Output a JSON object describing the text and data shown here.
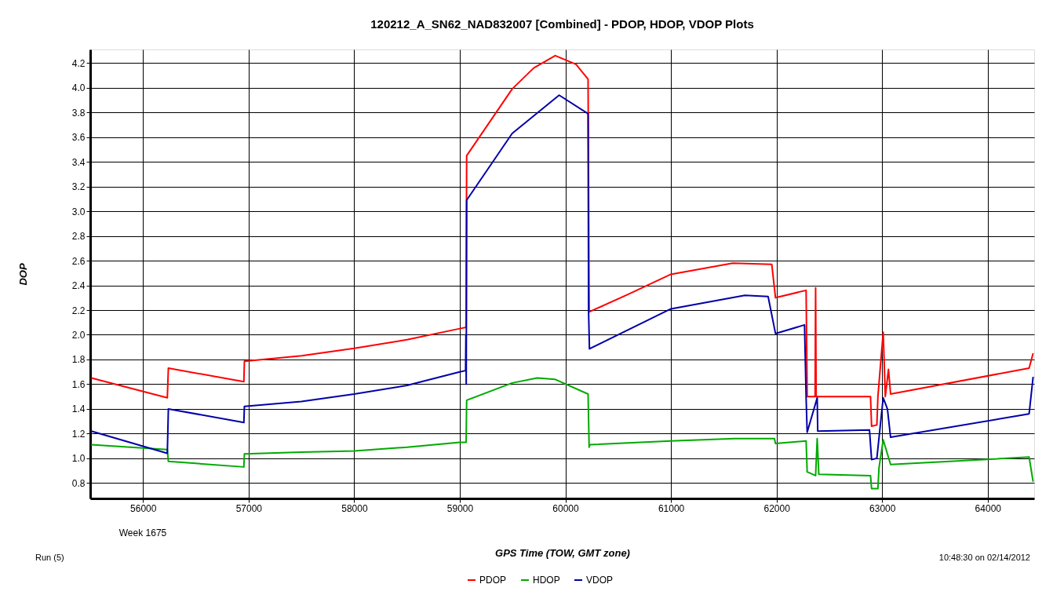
{
  "chart_data": {
    "type": "line",
    "title": "120212_A_SN62_NAD832007 [Combined] - PDOP, HDOP, VDOP Plots",
    "xlabel": "GPS Time (TOW, GMT zone)",
    "ylabel": "DOP",
    "annotations": [
      "Week 1675",
      "Run (5)",
      "10:48:30 on 02/14/2012"
    ],
    "xlim": [
      55500,
      64440
    ],
    "xticks": [
      56000,
      57000,
      58000,
      59000,
      60000,
      61000,
      62000,
      63000,
      64000
    ],
    "ylim": [
      0.675,
      4.31
    ],
    "yticks": [
      {
        "value": 0.8,
        "label": "0.8"
      },
      {
        "value": 1.0,
        "label": "1.0"
      },
      {
        "value": 1.2,
        "label": "1.2"
      },
      {
        "value": 1.4,
        "label": "1.4"
      },
      {
        "value": 1.6,
        "label": "1.6"
      },
      {
        "value": 1.8,
        "label": "1.8"
      },
      {
        "value": 2.0,
        "label": "2.0"
      },
      {
        "value": 2.2,
        "label": "2.2"
      },
      {
        "value": 2.4,
        "label": "2.4"
      },
      {
        "value": 2.6,
        "label": "2.6"
      },
      {
        "value": 2.8,
        "label": "2.8"
      },
      {
        "value": 3.0,
        "label": "3.0"
      },
      {
        "value": 3.2,
        "label": "3.2"
      },
      {
        "value": 3.4,
        "label": "3.4"
      },
      {
        "value": 3.6,
        "label": "3.6"
      },
      {
        "value": 3.8,
        "label": "3.8"
      },
      {
        "value": 4.0,
        "label": "4.0"
      },
      {
        "value": 4.2,
        "label": "4.2"
      }
    ],
    "grid": true,
    "legend": "bottom",
    "marker": "none",
    "line_style": "solid",
    "series": [
      {
        "name": "PDOP",
        "color": "#ff0000",
        "x": [
          55510,
          56230,
          56240,
          56955,
          56960,
          57500,
          58000,
          58500,
          59000,
          59060,
          59065,
          59496,
          59700,
          59904,
          60100,
          60215,
          60225,
          60600,
          61000,
          61585,
          61955,
          61990,
          62280,
          62290,
          62365,
          62370,
          62375,
          62890,
          62900,
          62950,
          62960,
          63010,
          63030,
          63060,
          63080,
          64392,
          64430
        ],
        "values": [
          1.65,
          1.49,
          1.73,
          1.62,
          1.785,
          1.83,
          1.89,
          1.96,
          2.05,
          2.06,
          3.45,
          3.99,
          4.16,
          4.26,
          4.19,
          4.07,
          2.185,
          2.33,
          2.49,
          2.58,
          2.57,
          2.3,
          2.36,
          1.5,
          1.5,
          2.38,
          1.5,
          1.5,
          1.26,
          1.27,
          1.5,
          2.02,
          1.5,
          1.72,
          1.52,
          1.73,
          1.85
        ]
      },
      {
        "name": "HDOP",
        "color": "#00aa00",
        "x": [
          55510,
          56230,
          56240,
          56955,
          56960,
          57500,
          58000,
          58500,
          59000,
          59060,
          59065,
          59496,
          59733,
          59900,
          60215,
          60225,
          60232,
          61000,
          61600,
          61980,
          61990,
          62280,
          62290,
          62370,
          62385,
          62400,
          62890,
          62900,
          62960,
          62970,
          63010,
          63080,
          64392,
          64430
        ],
        "values": [
          1.11,
          1.07,
          0.975,
          0.93,
          1.035,
          1.05,
          1.06,
          1.09,
          1.13,
          1.13,
          1.47,
          1.61,
          1.65,
          1.64,
          1.52,
          1.09,
          1.11,
          1.14,
          1.16,
          1.16,
          1.12,
          1.14,
          0.89,
          0.86,
          1.16,
          0.87,
          0.86,
          0.755,
          0.755,
          0.92,
          1.15,
          0.95,
          1.01,
          0.81
        ]
      },
      {
        "name": "VDOP",
        "color": "#0000aa",
        "x": [
          55510,
          56230,
          56240,
          56955,
          56960,
          57500,
          58000,
          58500,
          59000,
          59055,
          59058,
          59061,
          59065,
          59496,
          59941,
          60215,
          60220,
          60228,
          61000,
          61700,
          61920,
          61990,
          62265,
          62280,
          62290,
          62385,
          62390,
          62880,
          62900,
          62950,
          63010,
          63050,
          63080,
          64392,
          64430
        ],
        "values": [
          1.22,
          1.04,
          1.4,
          1.29,
          1.42,
          1.46,
          1.52,
          1.59,
          1.7,
          1.71,
          2.0,
          1.6,
          3.09,
          3.63,
          3.94,
          3.79,
          2.18,
          1.886,
          2.21,
          2.32,
          2.31,
          2.01,
          2.08,
          1.49,
          1.21,
          1.49,
          1.22,
          1.23,
          0.99,
          1.0,
          1.49,
          1.4,
          1.17,
          1.36,
          1.66
        ]
      }
    ]
  }
}
